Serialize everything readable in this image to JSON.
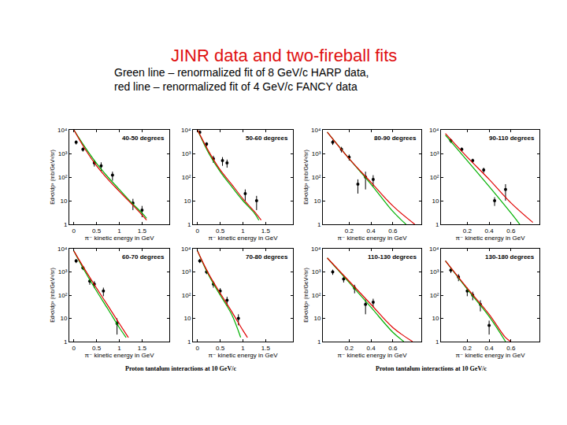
{
  "title": "JINR data and two-fireball fits",
  "subtitle": [
    "Green line – renormalized fit of 8 GeV/c HARP data,",
    "red line – renormalized fit of 4 GeV/c FANCY data"
  ],
  "footers": [
    "Proton tantalum interactions at 10 GeV/c",
    "Proton tantalum interactions at 10 GeV/c"
  ],
  "chart_data": [
    {
      "type": "scatter",
      "title": "40-50 degrees",
      "x_label": "π⁻ kinetic energy in GeV",
      "y_label": "Ed³σ/dp³ (mb/GeV²/sr)",
      "xlim": [
        -0.1,
        2.1
      ],
      "xticks": [
        0,
        0.5,
        1,
        1.5
      ],
      "ylim": [
        1,
        10000
      ],
      "yticks": [
        1,
        10,
        {
          "value": 100,
          "label": "10²"
        },
        {
          "value": 1000,
          "label": "10³"
        },
        {
          "value": 10000,
          "label": "10⁴"
        }
      ],
      "log": "y",
      "series": [
        {
          "type": "scatter",
          "color": "#000000",
          "marker": "circle",
          "x": [
            0.05,
            0.2,
            0.45,
            0.6,
            0.85,
            1.3,
            1.5
          ],
          "values": [
            3000,
            1500,
            400,
            300,
            120,
            8,
            4
          ],
          "errors": [
            600,
            300,
            120,
            120,
            50,
            4,
            2
          ]
        },
        {
          "type": "line",
          "color": "#00b000",
          "line_style": "solid",
          "x": [
            0,
            0.25,
            0.5,
            0.75,
            1,
            1.25,
            1.5,
            1.6
          ],
          "values": [
            10000,
            1800,
            380,
            100,
            30,
            9,
            3,
            1.8
          ]
        },
        {
          "type": "line",
          "color": "#e00000",
          "line_style": "solid",
          "x": [
            0,
            0.25,
            0.5,
            0.75,
            1,
            1.25,
            1.5,
            1.6
          ],
          "values": [
            10000,
            1500,
            300,
            80,
            25,
            8,
            2.5,
            1.5
          ]
        }
      ]
    },
    {
      "type": "scatter",
      "title": "50-60 degrees",
      "x_label": "π⁻ kinetic energy in GeV",
      "xlim": [
        -0.1,
        2.1
      ],
      "xticks": [
        0,
        0.5,
        1,
        1.5
      ],
      "ylim": [
        1,
        10000
      ],
      "yticks": [
        1,
        10,
        {
          "value": 100,
          "label": "10²"
        },
        {
          "value": 1000,
          "label": "10³"
        },
        {
          "value": 10000,
          "label": "10⁴"
        }
      ],
      "log": "y",
      "series": [
        {
          "type": "scatter",
          "color": "#000000",
          "marker": "circle",
          "x": [
            0.05,
            0.2,
            0.35,
            0.55,
            0.65,
            1.05,
            1.3
          ],
          "values": [
            8000,
            2500,
            600,
            500,
            400,
            20,
            10
          ],
          "errors": [
            1500,
            500,
            200,
            200,
            150,
            10,
            6
          ]
        },
        {
          "type": "line",
          "color": "#00b000",
          "line_style": "solid",
          "x": [
            0,
            0.25,
            0.5,
            0.75,
            1,
            1.25,
            1.35
          ],
          "values": [
            10000,
            1000,
            170,
            40,
            10,
            3,
            1.5
          ]
        },
        {
          "type": "line",
          "color": "#e00000",
          "line_style": "solid",
          "x": [
            0,
            0.25,
            0.5,
            0.75,
            1,
            1.25,
            1.4
          ],
          "values": [
            10000,
            1200,
            200,
            50,
            12,
            3.5,
            1.5
          ]
        }
      ]
    },
    {
      "type": "scatter",
      "title": "60-70 degrees",
      "x_label": "π⁻ kinetic energy in GeV",
      "y_label": "Ed³σ/dp³ (mb/GeV²/sr)",
      "xlim": [
        -0.1,
        2.1
      ],
      "xticks": [
        0,
        0.5,
        1,
        1.5
      ],
      "ylim": [
        1,
        10000
      ],
      "yticks": [
        1,
        10,
        {
          "value": 100,
          "label": "10²"
        },
        {
          "value": 1000,
          "label": "10³"
        },
        {
          "value": 10000,
          "label": "10⁴"
        }
      ],
      "log": "y",
      "series": [
        {
          "type": "scatter",
          "color": "#000000",
          "marker": "circle",
          "x": [
            0.05,
            0.2,
            0.35,
            0.45,
            0.65,
            0.95
          ],
          "values": [
            3000,
            1500,
            400,
            300,
            150,
            6
          ],
          "errors": [
            600,
            300,
            120,
            100,
            60,
            4
          ]
        },
        {
          "type": "line",
          "color": "#00b000",
          "line_style": "solid",
          "x": [
            0,
            0.25,
            0.5,
            0.75,
            1,
            1.15
          ],
          "values": [
            8000,
            1000,
            150,
            25,
            4,
            1.5
          ]
        },
        {
          "type": "line",
          "color": "#e00000",
          "line_style": "solid",
          "x": [
            0,
            0.25,
            0.5,
            0.75,
            1,
            1.2
          ],
          "values": [
            8000,
            1200,
            200,
            35,
            6,
            1.5
          ]
        }
      ]
    },
    {
      "type": "scatter",
      "title": "70-80 degrees",
      "x_label": "π⁻ kinetic energy in GeV",
      "xlim": [
        -0.1,
        2.1
      ],
      "xticks": [
        0,
        0.5,
        1,
        1.5
      ],
      "ylim": [
        1,
        10000
      ],
      "yticks": [
        1,
        10,
        {
          "value": 100,
          "label": "10²"
        },
        {
          "value": 1000,
          "label": "10³"
        },
        {
          "value": 10000,
          "label": "10⁴"
        }
      ],
      "log": "y",
      "series": [
        {
          "type": "scatter",
          "color": "#000000",
          "marker": "circle",
          "x": [
            0.05,
            0.2,
            0.35,
            0.5,
            0.65,
            0.9
          ],
          "values": [
            3000,
            1000,
            300,
            150,
            60,
            10
          ],
          "errors": [
            600,
            200,
            90,
            50,
            25,
            5
          ]
        },
        {
          "type": "line",
          "color": "#00b000",
          "line_style": "solid",
          "x": [
            0,
            0.25,
            0.5,
            0.75,
            0.95
          ],
          "values": [
            8000,
            700,
            100,
            15,
            1.5
          ]
        },
        {
          "type": "line",
          "color": "#e00000",
          "line_style": "solid",
          "x": [
            0,
            0.25,
            0.5,
            0.75,
            1,
            1.1
          ],
          "values": [
            8000,
            800,
            120,
            20,
            3,
            1.5
          ]
        }
      ]
    },
    {
      "type": "scatter",
      "title": "80-90 degrees",
      "x_label": "π⁻ kinetic energy in GeV",
      "y_label": "Ed³σ/dp³ (mb/GeV²/sr)",
      "xlim": [
        -0.04,
        0.86
      ],
      "xticks": [
        0.2,
        0.4,
        0.6
      ],
      "ylim": [
        1,
        10000
      ],
      "yticks": [
        1,
        10,
        {
          "value": 100,
          "label": "10²"
        },
        {
          "value": 1000,
          "label": "10³"
        },
        {
          "value": 10000,
          "label": "10⁴"
        }
      ],
      "log": "y",
      "series": [
        {
          "type": "scatter",
          "color": "#000000",
          "marker": "circle",
          "x": [
            0.05,
            0.13,
            0.2,
            0.28,
            0.35,
            0.42
          ],
          "values": [
            3000,
            1500,
            700,
            50,
            100,
            80
          ],
          "errors": [
            700,
            400,
            200,
            30,
            70,
            40
          ]
        },
        {
          "type": "line",
          "color": "#00b000",
          "line_style": "solid",
          "x": [
            0,
            0.2,
            0.4,
            0.6,
            0.72
          ],
          "values": [
            8000,
            600,
            50,
            3.5,
            1
          ]
        },
        {
          "type": "line",
          "color": "#e00000",
          "line_style": "solid",
          "x": [
            0,
            0.2,
            0.4,
            0.6,
            0.8
          ],
          "values": [
            8000,
            600,
            60,
            6,
            1
          ]
        }
      ]
    },
    {
      "type": "scatter",
      "title": "90-110 degrees",
      "x_label": "π⁻ kinetic energy in GeV",
      "xlim": [
        -0.04,
        0.86
      ],
      "xticks": [
        0.2,
        0.4,
        0.6
      ],
      "ylim": [
        1,
        10000
      ],
      "yticks": [
        1,
        10,
        {
          "value": 100,
          "label": "10²"
        },
        {
          "value": 1000,
          "label": "10³"
        },
        {
          "value": 10000,
          "label": "10⁴"
        }
      ],
      "log": "y",
      "series": [
        {
          "type": "scatter",
          "color": "#000000",
          "marker": "circle",
          "x": [
            0.05,
            0.15,
            0.25,
            0.35,
            0.45,
            0.55
          ],
          "values": [
            3500,
            1500,
            500,
            200,
            10,
            30
          ],
          "errors": [
            700,
            300,
            100,
            50,
            4,
            20
          ]
        },
        {
          "type": "line",
          "color": "#00b000",
          "line_style": "solid",
          "x": [
            0,
            0.2,
            0.4,
            0.6,
            0.68
          ],
          "values": [
            6000,
            500,
            40,
            3,
            1
          ]
        },
        {
          "type": "line",
          "color": "#e00000",
          "line_style": "solid",
          "x": [
            0,
            0.2,
            0.4,
            0.6,
            0.8
          ],
          "values": [
            7000,
            700,
            80,
            8,
            1.2
          ]
        }
      ]
    },
    {
      "type": "scatter",
      "title": "110-130 degrees",
      "x_label": "π⁻ kinetic energy in GeV",
      "y_label": "Ed³σ/dp³ (mb/GeV²/sr)",
      "xlim": [
        -0.04,
        0.86
      ],
      "xticks": [
        0.2,
        0.4,
        0.6
      ],
      "ylim": [
        1,
        10000
      ],
      "yticks": [
        1,
        10,
        {
          "value": 100,
          "label": "10²"
        },
        {
          "value": 1000,
          "label": "10³"
        },
        {
          "value": 10000,
          "label": "10⁴"
        }
      ],
      "log": "y",
      "series": [
        {
          "type": "scatter",
          "color": "#000000",
          "marker": "circle",
          "x": [
            0.05,
            0.15,
            0.25,
            0.35,
            0.42
          ],
          "values": [
            1000,
            500,
            200,
            40,
            50
          ],
          "errors": [
            250,
            150,
            80,
            25,
            20
          ]
        },
        {
          "type": "line",
          "color": "#00b000",
          "line_style": "solid",
          "x": [
            0,
            0.2,
            0.4,
            0.6,
            0.7
          ],
          "values": [
            4000,
            350,
            30,
            2.5,
            1
          ]
        },
        {
          "type": "line",
          "color": "#e00000",
          "line_style": "solid",
          "x": [
            0,
            0.2,
            0.4,
            0.6,
            0.78
          ],
          "values": [
            4000,
            400,
            40,
            4,
            1
          ]
        }
      ]
    },
    {
      "type": "scatter",
      "title": "130-180 degrees",
      "x_label": "π⁻ kinetic energy in GeV",
      "xlim": [
        -0.04,
        0.86
      ],
      "xticks": [
        0.2,
        0.4,
        0.6
      ],
      "ylim": [
        1,
        10000
      ],
      "yticks": [
        1,
        10,
        {
          "value": 100,
          "label": "10²"
        },
        {
          "value": 1000,
          "label": "10³"
        },
        {
          "value": 10000,
          "label": "10⁴"
        }
      ],
      "log": "y",
      "series": [
        {
          "type": "scatter",
          "color": "#000000",
          "marker": "circle",
          "x": [
            0.05,
            0.12,
            0.2,
            0.25,
            0.32,
            0.4
          ],
          "values": [
            1200,
            600,
            150,
            100,
            40,
            5
          ],
          "errors": [
            300,
            200,
            60,
            40,
            20,
            3
          ]
        },
        {
          "type": "line",
          "color": "#00b000",
          "line_style": "solid",
          "x": [
            0,
            0.2,
            0.4,
            0.55
          ],
          "values": [
            3000,
            180,
            12,
            1
          ]
        },
        {
          "type": "line",
          "color": "#e00000",
          "line_style": "solid",
          "x": [
            0,
            0.2,
            0.4,
            0.55,
            0.6
          ],
          "values": [
            3000,
            200,
            15,
            1.5,
            1
          ]
        }
      ]
    }
  ]
}
